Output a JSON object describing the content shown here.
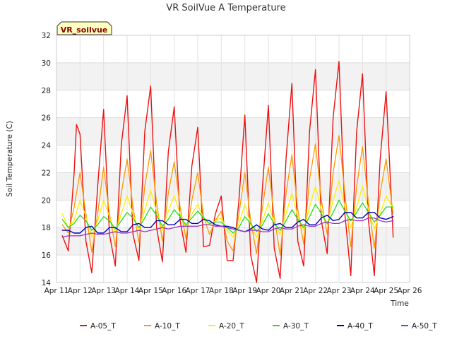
{
  "chart_data": {
    "type": "line",
    "title": "VR SoilVue A Temperature",
    "xlabel": "Time",
    "ylabel": "Soil Temperature (C)",
    "badge": "VR_soilvue",
    "ylim": [
      14,
      32
    ],
    "yticks": [
      14,
      16,
      18,
      20,
      22,
      24,
      26,
      28,
      30,
      32
    ],
    "xlim": [
      11,
      26
    ],
    "xticks": [
      {
        "v": 11,
        "label": "Apr 11"
      },
      {
        "v": 12,
        "label": "Apr 12"
      },
      {
        "v": 13,
        "label": "Apr 13"
      },
      {
        "v": 14,
        "label": "Apr 14"
      },
      {
        "v": 15,
        "label": "Apr 15"
      },
      {
        "v": 16,
        "label": "Apr 16"
      },
      {
        "v": 17,
        "label": "Apr 17"
      },
      {
        "v": 18,
        "label": "Apr 18"
      },
      {
        "v": 19,
        "label": "Apr 19"
      },
      {
        "v": 20,
        "label": "Apr 20"
      },
      {
        "v": 21,
        "label": "Apr 21"
      },
      {
        "v": 22,
        "label": "Apr 22"
      },
      {
        "v": 23,
        "label": "Apr 23"
      },
      {
        "v": 24,
        "label": "Apr 24"
      },
      {
        "v": 25,
        "label": "Apr 25"
      },
      {
        "v": 26,
        "label": "Apr 26"
      }
    ],
    "grid": true,
    "legend_position": "bottom",
    "series": [
      {
        "name": "A-05_T",
        "color": "#ee1111",
        "width": 1.4,
        "x": [
          11.25,
          11.5,
          11.75,
          11.85,
          12.0,
          12.25,
          12.5,
          12.75,
          13.0,
          13.25,
          13.5,
          13.75,
          14.0,
          14.25,
          14.5,
          14.75,
          15.0,
          15.25,
          15.5,
          15.75,
          16.0,
          16.25,
          16.5,
          16.75,
          17.0,
          17.25,
          17.5,
          17.75,
          18.0,
          18.25,
          18.5,
          18.75,
          19.0,
          19.25,
          19.5,
          19.75,
          20.0,
          20.25,
          20.5,
          20.75,
          21.0,
          21.25,
          21.5,
          21.75,
          22.0,
          22.25,
          22.5,
          22.75,
          23.0,
          23.25,
          23.5,
          23.75,
          24.0,
          24.25,
          24.5,
          24.75,
          25.0,
          25.3
        ],
        "y": [
          17.4,
          16.3,
          22.0,
          25.5,
          24.8,
          17.0,
          14.7,
          21.0,
          26.6,
          17.5,
          15.2,
          24.0,
          27.6,
          17.5,
          15.6,
          25.0,
          28.3,
          18.0,
          15.5,
          23.5,
          26.8,
          18.5,
          16.2,
          22.5,
          25.3,
          16.6,
          16.7,
          19.0,
          20.3,
          15.6,
          15.6,
          20.0,
          26.2,
          16.0,
          14.0,
          21.0,
          26.9,
          16.5,
          14.3,
          23.0,
          28.5,
          17.0,
          15.2,
          25.0,
          29.5,
          18.5,
          16.1,
          26.0,
          30.1,
          19.0,
          14.5,
          25.0,
          29.2,
          18.5,
          14.5,
          23.0,
          27.9,
          17.3
        ]
      },
      {
        "name": "A-10_T",
        "color": "#ff9900",
        "width": 1.3,
        "x": [
          11.25,
          11.5,
          11.75,
          12.0,
          12.25,
          12.5,
          12.75,
          13.0,
          13.25,
          13.5,
          13.75,
          14.0,
          14.25,
          14.5,
          14.75,
          15.0,
          15.25,
          15.5,
          15.75,
          16.0,
          16.25,
          16.5,
          16.75,
          17.0,
          17.25,
          17.5,
          17.75,
          18.0,
          18.25,
          18.5,
          18.75,
          19.0,
          19.25,
          19.5,
          19.75,
          20.0,
          20.25,
          20.5,
          20.75,
          21.0,
          21.25,
          21.5,
          21.75,
          22.0,
          22.25,
          22.5,
          22.75,
          23.0,
          23.25,
          23.5,
          23.75,
          24.0,
          24.25,
          24.5,
          24.75,
          25.0,
          25.3
        ],
        "y": [
          18.2,
          17.6,
          19.5,
          22.0,
          19.0,
          16.2,
          19.0,
          22.4,
          19.0,
          16.6,
          20.5,
          23.0,
          19.5,
          16.9,
          21.0,
          23.6,
          19.8,
          17.0,
          20.5,
          22.8,
          19.5,
          17.2,
          20.0,
          22.0,
          18.8,
          17.5,
          18.5,
          19.2,
          17.0,
          16.3,
          19.0,
          22.0,
          18.5,
          16.1,
          19.5,
          22.4,
          18.8,
          16.0,
          20.5,
          23.3,
          19.3,
          16.8,
          21.5,
          24.1,
          20.0,
          17.5,
          22.0,
          24.7,
          20.5,
          16.6,
          21.0,
          23.9,
          19.8,
          16.5,
          20.5,
          23.0,
          19.0
        ]
      },
      {
        "name": "A-20_T",
        "color": "#ffee00",
        "width": 1.3,
        "x": [
          11.25,
          11.5,
          11.75,
          12.0,
          12.25,
          12.5,
          12.75,
          13.0,
          13.25,
          13.5,
          13.75,
          14.0,
          14.25,
          14.5,
          14.75,
          15.0,
          15.25,
          15.5,
          15.75,
          16.0,
          16.25,
          16.5,
          16.75,
          17.0,
          17.25,
          17.5,
          17.75,
          18.0,
          18.25,
          18.5,
          18.75,
          19.0,
          19.25,
          19.5,
          19.75,
          20.0,
          20.25,
          20.5,
          20.75,
          21.0,
          21.25,
          21.5,
          21.75,
          22.0,
          22.25,
          22.5,
          22.75,
          23.0,
          23.25,
          23.5,
          23.75,
          24.0,
          24.25,
          24.5,
          24.75,
          25.0,
          25.3
        ],
        "y": [
          19.0,
          18.0,
          18.5,
          20.0,
          18.8,
          17.3,
          18.5,
          20.0,
          18.8,
          17.6,
          19.0,
          20.3,
          19.0,
          17.8,
          19.3,
          20.7,
          19.2,
          17.8,
          19.2,
          20.3,
          19.0,
          18.0,
          19.0,
          19.7,
          18.6,
          18.2,
          18.5,
          18.7,
          17.8,
          17.3,
          18.3,
          19.7,
          18.2,
          17.3,
          18.5,
          19.8,
          18.3,
          17.5,
          19.0,
          20.5,
          18.8,
          17.8,
          19.5,
          21.0,
          19.3,
          18.2,
          20.0,
          21.4,
          19.5,
          18.0,
          19.5,
          21.0,
          19.3,
          17.9,
          19.0,
          20.3,
          19.4
        ]
      },
      {
        "name": "A-30_T",
        "color": "#22dd22",
        "width": 1.3,
        "x": [
          11.25,
          11.5,
          11.75,
          12.0,
          12.25,
          12.5,
          12.75,
          13.0,
          13.25,
          13.5,
          13.75,
          14.0,
          14.25,
          14.5,
          14.75,
          15.0,
          15.25,
          15.5,
          15.75,
          16.0,
          16.25,
          16.5,
          16.75,
          17.0,
          17.25,
          17.5,
          17.75,
          18.0,
          18.25,
          18.5,
          18.75,
          19.0,
          19.25,
          19.5,
          19.75,
          20.0,
          20.25,
          20.5,
          20.75,
          21.0,
          21.25,
          21.5,
          21.75,
          22.0,
          22.25,
          22.5,
          22.75,
          23.0,
          23.25,
          23.5,
          23.75,
          24.0,
          24.25,
          24.5,
          24.75,
          25.0,
          25.3
        ],
        "y": [
          18.6,
          18.0,
          18.3,
          18.9,
          18.5,
          17.8,
          18.2,
          18.8,
          18.5,
          17.9,
          18.5,
          19.1,
          18.7,
          18.0,
          18.7,
          19.5,
          18.9,
          18.1,
          18.6,
          19.3,
          18.8,
          18.2,
          18.7,
          19.2,
          18.7,
          18.3,
          18.4,
          18.4,
          18.0,
          17.6,
          18.0,
          18.8,
          18.3,
          17.7,
          18.2,
          19.0,
          18.3,
          17.8,
          18.5,
          19.3,
          18.6,
          18.0,
          18.8,
          19.7,
          19.0,
          18.3,
          19.1,
          20.0,
          19.2,
          18.5,
          19.1,
          19.8,
          19.1,
          18.4,
          18.9,
          19.5,
          19.5
        ]
      },
      {
        "name": "A-40_T",
        "color": "#0000bb",
        "width": 1.4,
        "x": [
          11.25,
          11.5,
          11.75,
          12.0,
          12.25,
          12.5,
          12.75,
          13.0,
          13.25,
          13.5,
          13.75,
          14.0,
          14.25,
          14.5,
          14.75,
          15.0,
          15.25,
          15.5,
          15.75,
          16.0,
          16.25,
          16.5,
          16.75,
          17.0,
          17.25,
          17.5,
          17.75,
          18.0,
          18.25,
          18.5,
          18.75,
          19.0,
          19.25,
          19.5,
          19.75,
          20.0,
          20.25,
          20.5,
          20.75,
          21.0,
          21.25,
          21.5,
          21.75,
          22.0,
          22.25,
          22.5,
          22.75,
          23.0,
          23.25,
          23.5,
          23.75,
          24.0,
          24.25,
          24.5,
          24.75,
          25.0,
          25.3
        ],
        "y": [
          17.8,
          17.8,
          17.6,
          17.6,
          18.0,
          18.1,
          17.6,
          17.6,
          18.0,
          18.0,
          17.7,
          17.7,
          18.2,
          18.3,
          18.0,
          18.0,
          18.5,
          18.5,
          18.2,
          18.2,
          18.6,
          18.6,
          18.3,
          18.3,
          18.6,
          18.5,
          18.2,
          18.1,
          18.1,
          18.0,
          17.8,
          17.7,
          17.9,
          18.2,
          17.9,
          17.8,
          18.2,
          18.3,
          18.0,
          18.0,
          18.4,
          18.6,
          18.2,
          18.2,
          18.7,
          18.9,
          18.5,
          18.6,
          19.1,
          19.1,
          18.7,
          18.7,
          19.1,
          19.1,
          18.7,
          18.6,
          18.8
        ]
      },
      {
        "name": "A-50_T",
        "color": "#9933cc",
        "width": 1.3,
        "x": [
          11.25,
          11.5,
          11.75,
          12.0,
          12.25,
          12.5,
          12.75,
          13.0,
          13.25,
          13.5,
          13.75,
          14.0,
          14.25,
          14.5,
          14.75,
          15.0,
          15.25,
          15.5,
          15.75,
          16.0,
          16.25,
          16.5,
          16.75,
          17.0,
          17.25,
          17.5,
          17.75,
          18.0,
          18.25,
          18.5,
          18.75,
          19.0,
          19.25,
          19.5,
          19.75,
          20.0,
          20.25,
          20.5,
          20.75,
          21.0,
          21.25,
          21.5,
          21.75,
          22.0,
          22.25,
          22.5,
          22.75,
          23.0,
          23.25,
          23.5,
          23.75,
          24.0,
          24.25,
          24.5,
          24.75,
          25.0,
          25.3
        ],
        "y": [
          17.3,
          17.4,
          17.4,
          17.4,
          17.5,
          17.6,
          17.5,
          17.5,
          17.6,
          17.7,
          17.6,
          17.6,
          17.7,
          17.8,
          17.7,
          17.8,
          17.9,
          18.0,
          17.9,
          18.0,
          18.1,
          18.1,
          18.1,
          18.1,
          18.2,
          18.2,
          18.1,
          18.1,
          18.0,
          17.9,
          17.8,
          17.7,
          17.8,
          17.8,
          17.7,
          17.7,
          17.9,
          18.0,
          17.9,
          17.9,
          18.1,
          18.2,
          18.1,
          18.1,
          18.3,
          18.4,
          18.3,
          18.3,
          18.5,
          18.6,
          18.5,
          18.5,
          18.7,
          18.7,
          18.5,
          18.4,
          18.5
        ]
      }
    ]
  }
}
